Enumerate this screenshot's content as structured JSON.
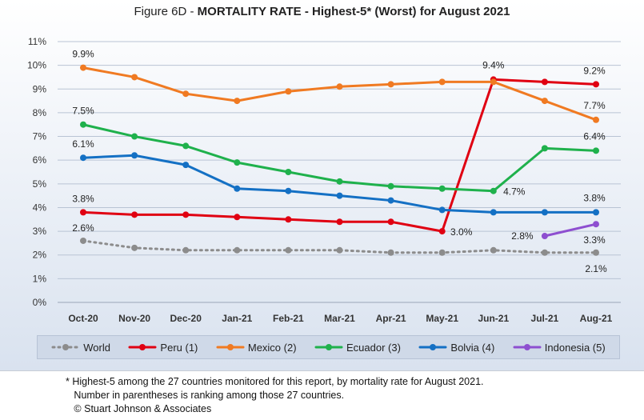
{
  "title": {
    "prefix": "Figure 6D  - ",
    "main": "MORTALITY RATE - Highest-5* (Worst) for August 2021"
  },
  "chart_data": {
    "type": "line",
    "categories": [
      "Oct-20",
      "Nov-20",
      "Dec-20",
      "Jan-21",
      "Feb-21",
      "Mar-21",
      "Apr-21",
      "May-21",
      "Jun-21",
      "Jul-21",
      "Aug-21"
    ],
    "y_ticks": [
      "0%",
      "1%",
      "2%",
      "3%",
      "4%",
      "5%",
      "6%",
      "7%",
      "8%",
      "9%",
      "10%",
      "11%"
    ],
    "ylim": [
      0,
      11
    ],
    "grid": true,
    "legend_position": "bottom",
    "series": [
      {
        "name": "World",
        "color": "#8c8c8c",
        "dashed": true,
        "values": [
          2.6,
          2.3,
          2.2,
          2.2,
          2.2,
          2.2,
          2.1,
          2.1,
          2.2,
          2.1,
          2.1
        ],
        "labels": [
          {
            "i": 0,
            "text": "2.6%"
          },
          {
            "i": 10,
            "text": "2.1%"
          }
        ]
      },
      {
        "name": "Peru (1)",
        "color": "#e00012",
        "values": [
          3.8,
          3.7,
          3.7,
          3.6,
          3.5,
          3.4,
          3.4,
          3.0,
          9.4,
          9.3,
          9.2
        ],
        "labels": [
          {
            "i": 0,
            "text": "3.8%"
          },
          {
            "i": 7,
            "text": "3.0%"
          },
          {
            "i": 8,
            "text": "9.4%"
          },
          {
            "i": 10,
            "text": "9.2%"
          }
        ]
      },
      {
        "name": "Mexico (2)",
        "color": "#f07a22",
        "values": [
          9.9,
          9.5,
          8.8,
          8.5,
          8.9,
          9.1,
          9.2,
          9.3,
          9.3,
          8.5,
          7.7
        ],
        "labels": [
          {
            "i": 0,
            "text": "9.9%"
          },
          {
            "i": 10,
            "text": "7.7%"
          }
        ]
      },
      {
        "name": "Ecuador (3)",
        "color": "#1fb14c",
        "values": [
          7.5,
          7.0,
          6.6,
          5.9,
          5.5,
          5.1,
          4.9,
          4.8,
          4.7,
          6.5,
          6.4
        ],
        "labels": [
          {
            "i": 0,
            "text": "7.5%"
          },
          {
            "i": 8,
            "text": "4.7%"
          },
          {
            "i": 10,
            "text": "6.4%"
          }
        ]
      },
      {
        "name": "Bolvia (4)",
        "color": "#1470c4",
        "values": [
          6.1,
          6.2,
          5.8,
          4.8,
          4.7,
          4.5,
          4.3,
          3.9,
          3.8,
          3.8,
          3.8
        ],
        "labels": [
          {
            "i": 0,
            "text": "6.1%"
          },
          {
            "i": 10,
            "text": "3.8%"
          }
        ]
      },
      {
        "name": "Indonesia (5)",
        "color": "#8e4fd0",
        "values": [
          null,
          null,
          null,
          null,
          null,
          null,
          null,
          null,
          null,
          2.8,
          3.3
        ],
        "labels": [
          {
            "i": 9,
            "text": "2.8%"
          },
          {
            "i": 10,
            "text": "3.3%"
          }
        ]
      }
    ]
  },
  "footnote": {
    "line1": "* Highest-5 among the 27 countries monitored for this report, by mortality rate for August 2021.",
    "line2": "   Number in parentheses is ranking among those 27 countries.",
    "line3": "   © Stuart Johnson & Associates"
  }
}
